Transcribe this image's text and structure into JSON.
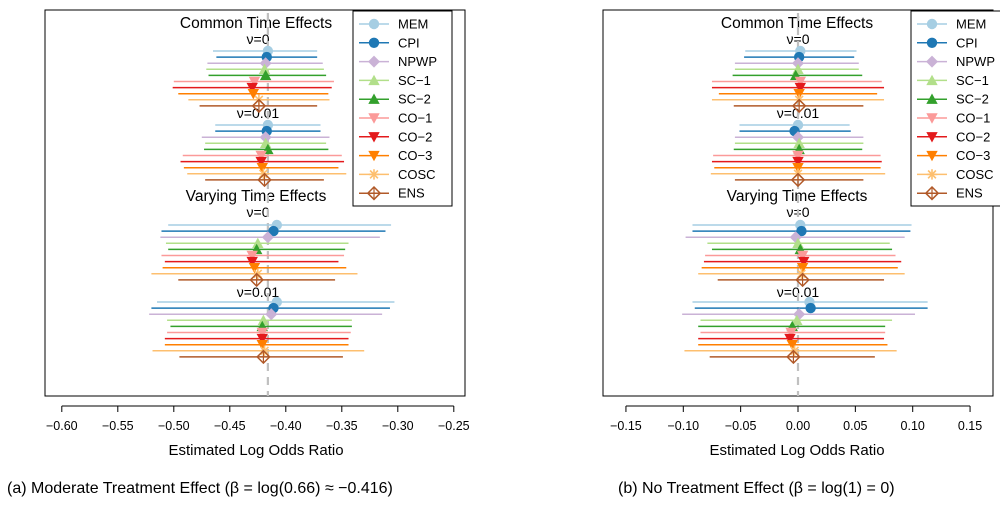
{
  "chart_data": [
    {
      "type": "forest",
      "panel_id": "a",
      "caption": "(a) Moderate Treatment Effect (β = log(0.66)  ≈  −0.416)",
      "xlabel": "Estimated Log Odds Ratio",
      "xlim": [
        -0.615,
        -0.24
      ],
      "xticks": [
        "−0.60",
        "−0.55",
        "−0.50",
        "−0.45",
        "−0.40",
        "−0.35",
        "−0.30",
        "−0.25"
      ],
      "xtick_values": [
        -0.6,
        -0.55,
        -0.5,
        -0.45,
        -0.4,
        -0.35,
        -0.3,
        -0.25
      ],
      "reference_line": -0.416,
      "group_titles": [
        "Common Time Effects",
        "Varying Time Effects"
      ],
      "subgroup_labels": [
        "ν=0",
        "ν=0.01"
      ],
      "subgroups": [
        {
          "est": [
            -0.416,
            -0.417,
            -0.418,
            -0.419,
            -0.418,
            -0.428,
            -0.43,
            -0.429,
            -0.424,
            -0.424
          ],
          "lo": [
            -0.465,
            -0.462,
            -0.47,
            -0.471,
            -0.469,
            -0.5,
            -0.501,
            -0.496,
            -0.487,
            -0.477
          ],
          "hi": [
            -0.372,
            -0.372,
            -0.367,
            -0.366,
            -0.364,
            -0.357,
            -0.359,
            -0.362,
            -0.361,
            -0.372
          ]
        },
        {
          "est": [
            -0.416,
            -0.417,
            -0.418,
            -0.418,
            -0.416,
            -0.422,
            -0.422,
            -0.421,
            -0.42,
            -0.419
          ],
          "lo": [
            -0.463,
            -0.463,
            -0.475,
            -0.472,
            -0.473,
            -0.492,
            -0.494,
            -0.491,
            -0.488,
            -0.472
          ],
          "hi": [
            -0.369,
            -0.369,
            -0.361,
            -0.364,
            -0.362,
            -0.35,
            -0.348,
            -0.353,
            -0.346,
            -0.366
          ]
        },
        {
          "est": [
            -0.408,
            -0.411,
            -0.416,
            -0.425,
            -0.426,
            -0.43,
            -0.43,
            -0.428,
            -0.425,
            -0.426
          ],
          "lo": [
            -0.505,
            -0.511,
            -0.512,
            -0.507,
            -0.505,
            -0.511,
            -0.508,
            -0.51,
            -0.52,
            -0.496
          ],
          "hi": [
            -0.306,
            -0.311,
            -0.316,
            -0.344,
            -0.347,
            -0.348,
            -0.353,
            -0.346,
            -0.336,
            -0.356
          ]
        },
        {
          "est": [
            -0.408,
            -0.411,
            -0.413,
            -0.42,
            -0.421,
            -0.421,
            -0.421,
            -0.421,
            -0.419,
            -0.42
          ],
          "lo": [
            -0.515,
            -0.52,
            -0.522,
            -0.506,
            -0.503,
            -0.506,
            -0.508,
            -0.508,
            -0.519,
            -0.495
          ],
          "hi": [
            -0.303,
            -0.307,
            -0.314,
            -0.341,
            -0.341,
            -0.342,
            -0.344,
            -0.344,
            -0.33,
            -0.349
          ]
        }
      ]
    },
    {
      "type": "forest",
      "panel_id": "b",
      "caption": "(b) No Treatment Effect (β = log(1) = 0)",
      "xlabel": "Estimated Log Odds Ratio",
      "xlim": [
        -0.17,
        0.17
      ],
      "xticks": [
        "−0.15",
        "−0.10",
        "−0.05",
        "0.00",
        "0.05",
        "0.10",
        "0.15"
      ],
      "xtick_values": [
        -0.15,
        -0.1,
        -0.05,
        0.0,
        0.05,
        0.1,
        0.15
      ],
      "reference_line": 0,
      "group_titles": [
        "Common Time Effects",
        "Varying Time Effects"
      ],
      "subgroup_labels": [
        "ν=0",
        "ν=0.01"
      ],
      "subgroups": [
        {
          "est": [
            0.002,
            0.001,
            0.0,
            0.0,
            -0.002,
            0.002,
            0.002,
            0.001,
            0.001,
            0.001
          ],
          "lo": [
            -0.046,
            -0.047,
            -0.055,
            -0.055,
            -0.057,
            -0.075,
            -0.075,
            -0.069,
            -0.075,
            -0.056
          ],
          "hi": [
            0.051,
            0.049,
            0.053,
            0.053,
            0.056,
            0.073,
            0.075,
            0.069,
            0.075,
            0.057
          ]
        },
        {
          "est": [
            0.0,
            -0.003,
            0.0,
            0.001,
            0.001,
            0.0,
            0.0,
            0.0,
            0.0,
            0.0
          ],
          "lo": [
            -0.051,
            -0.051,
            -0.055,
            -0.055,
            -0.056,
            -0.074,
            -0.075,
            -0.073,
            -0.076,
            -0.055
          ],
          "hi": [
            0.045,
            0.046,
            0.057,
            0.057,
            0.056,
            0.072,
            0.073,
            0.072,
            0.076,
            0.057
          ]
        },
        {
          "est": [
            0.002,
            0.003,
            -0.002,
            0.0,
            0.002,
            0.004,
            0.005,
            0.004,
            0.003,
            0.004
          ],
          "lo": [
            -0.092,
            -0.092,
            -0.098,
            -0.079,
            -0.075,
            -0.081,
            -0.082,
            -0.084,
            -0.087,
            -0.07
          ],
          "hi": [
            0.099,
            0.098,
            0.093,
            0.08,
            0.082,
            0.085,
            0.09,
            0.087,
            0.093,
            0.075
          ]
        },
        {
          "est": [
            0.01,
            0.011,
            0.001,
            -0.001,
            -0.005,
            -0.006,
            -0.007,
            -0.005,
            -0.003,
            -0.004
          ],
          "lo": [
            -0.092,
            -0.09,
            -0.101,
            -0.085,
            -0.087,
            -0.085,
            -0.087,
            -0.087,
            -0.099,
            -0.077
          ],
          "hi": [
            0.113,
            0.113,
            0.102,
            0.082,
            0.076,
            0.076,
            0.075,
            0.078,
            0.086,
            0.067
          ]
        }
      ]
    }
  ],
  "legend": {
    "items": [
      {
        "name": "MEM",
        "color": "#A6CEE3",
        "marker": "circle"
      },
      {
        "name": "CPI",
        "color": "#1F78B4",
        "marker": "circle"
      },
      {
        "name": "NPWP",
        "color": "#CAB2D6",
        "marker": "diamond"
      },
      {
        "name": "SC−1",
        "color": "#B2DF8A",
        "marker": "triangle-up"
      },
      {
        "name": "SC−2",
        "color": "#33A02C",
        "marker": "triangle-up"
      },
      {
        "name": "CO−1",
        "color": "#FB9A99",
        "marker": "triangle-down"
      },
      {
        "name": "CO−2",
        "color": "#E31A1C",
        "marker": "triangle-down"
      },
      {
        "name": "CO−3",
        "color": "#FF7F00",
        "marker": "triangle-down"
      },
      {
        "name": "COSC",
        "color": "#FDBF6F",
        "marker": "asterisk"
      },
      {
        "name": "ENS",
        "color": "#B15928",
        "marker": "diamond-open"
      }
    ]
  }
}
